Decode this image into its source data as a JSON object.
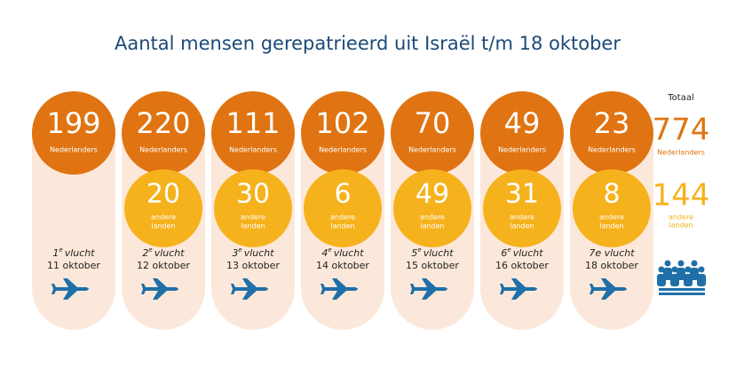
{
  "title": "Aantal mensen gerepatrieerd uit Israël t/m 18 oktober",
  "labels": {
    "dutch": "Nederlanders",
    "other": [
      "andere",
      "landen"
    ],
    "total": "Totaal"
  },
  "flights": [
    {
      "dutch": 199,
      "ordinal": "1",
      "sup": "e",
      "word": "vlucht",
      "date": "11 oktober"
    },
    {
      "dutch": 220,
      "other": 20,
      "ordinal": "2",
      "sup": "e",
      "word": "vlucht",
      "date": "12 oktober"
    },
    {
      "dutch": 111,
      "other": 30,
      "ordinal": "3",
      "sup": "e",
      "word": "vlucht",
      "date": "13 oktober"
    },
    {
      "dutch": 102,
      "other": 6,
      "ordinal": "4",
      "sup": "e",
      "word": "vlucht",
      "date": "14 oktober"
    },
    {
      "dutch": 70,
      "other": 49,
      "ordinal": "5",
      "sup": "e",
      "word": "vlucht",
      "date": "15 oktober"
    },
    {
      "dutch": 49,
      "other": 31,
      "ordinal": "6",
      "sup": "e",
      "word": "vlucht",
      "date": "16 oktober"
    },
    {
      "dutch": 23,
      "other": 8,
      "flight_label": "7e vlucht",
      "date": "18 oktober"
    }
  ],
  "totals": {
    "dutch": 774,
    "other": 144
  }
}
